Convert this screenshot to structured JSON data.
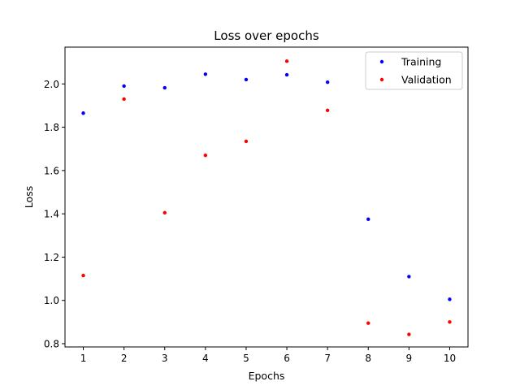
{
  "chart_data": {
    "type": "scatter",
    "title": "Loss over epochs",
    "xlabel": "Epochs",
    "ylabel": "Loss",
    "x": [
      1,
      2,
      3,
      4,
      5,
      6,
      7,
      8,
      9,
      10
    ],
    "xticks": [
      "1",
      "2",
      "3",
      "4",
      "5",
      "6",
      "7",
      "8",
      "9",
      "10"
    ],
    "yticks": [
      "0.8",
      "1.0",
      "1.2",
      "1.4",
      "1.6",
      "1.8",
      "2.0"
    ],
    "xlim": [
      0.55,
      10.45
    ],
    "ylim": [
      0.785,
      2.17
    ],
    "grid": false,
    "legend_position": "top-right",
    "series": [
      {
        "name": "Training",
        "color": "#0000ff",
        "values": [
          1.865,
          1.99,
          1.982,
          2.045,
          2.02,
          2.042,
          2.008,
          1.375,
          1.11,
          1.005
        ]
      },
      {
        "name": "Validation",
        "color": "#ff0000",
        "values": [
          1.115,
          1.93,
          1.405,
          1.67,
          1.735,
          2.105,
          1.878,
          0.895,
          0.843,
          0.9
        ]
      }
    ]
  }
}
